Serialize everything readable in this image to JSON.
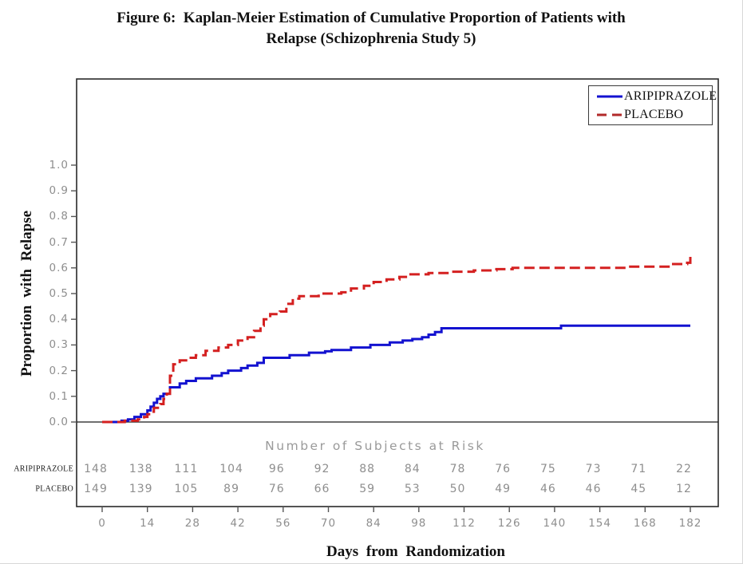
{
  "figure": {
    "title_line1": "Figure 6:  Kaplan-Meier Estimation of Cumulative Proportion of Patients with",
    "title_line2": "Relapse (Schizophrenia Study 5)"
  },
  "colors": {
    "aripiprazole_blue": "#1312d0",
    "placebo_red": "#d42020",
    "axis_text_gray": "#8e8e8e",
    "frame_black": "#2a2a2a"
  },
  "chart_data": {
    "type": "line",
    "subtype": "kaplan-meier-step",
    "title": "Figure 6: Kaplan-Meier Estimation of Cumulative Proportion of Patients with Relapse (Schizophrenia Study 5)",
    "xlabel": "Days from Randomization",
    "ylabel": "Proportion with Relapse",
    "xlim": [
      0,
      182
    ],
    "ylim": [
      0.0,
      1.0
    ],
    "grid": false,
    "baseline_y": 0.0,
    "xticks": [
      0,
      14,
      28,
      42,
      56,
      70,
      84,
      98,
      112,
      126,
      140,
      154,
      168,
      182
    ],
    "yticks": [
      0.0,
      0.1,
      0.2,
      0.3,
      0.4,
      0.5,
      0.6,
      0.7,
      0.8,
      0.9,
      1.0
    ],
    "legend": {
      "position": "top-right",
      "entries": [
        {
          "label": "ARIPIPRAZOLE",
          "color": "#1312d0",
          "style": "solid"
        },
        {
          "label": "PLACEBO",
          "color": "#d42020",
          "style": "dashed"
        }
      ]
    },
    "series": [
      {
        "name": "ARIPIPRAZOLE",
        "color": "#1312d0",
        "line_style": "solid",
        "points": [
          [
            0,
            0
          ],
          [
            6,
            0.005
          ],
          [
            8,
            0.01
          ],
          [
            10,
            0.02
          ],
          [
            12,
            0.03
          ],
          [
            14,
            0.045
          ],
          [
            15,
            0.06
          ],
          [
            16,
            0.075
          ],
          [
            17,
            0.09
          ],
          [
            18,
            0.1
          ],
          [
            19,
            0.11
          ],
          [
            21,
            0.135
          ],
          [
            24,
            0.15
          ],
          [
            26,
            0.16
          ],
          [
            29,
            0.17
          ],
          [
            34,
            0.18
          ],
          [
            37,
            0.19
          ],
          [
            39,
            0.2
          ],
          [
            43,
            0.21
          ],
          [
            45,
            0.22
          ],
          [
            48,
            0.23
          ],
          [
            50,
            0.25
          ],
          [
            58,
            0.26
          ],
          [
            64,
            0.27
          ],
          [
            69,
            0.275
          ],
          [
            71,
            0.28
          ],
          [
            77,
            0.29
          ],
          [
            83,
            0.3
          ],
          [
            89,
            0.31
          ],
          [
            93,
            0.317
          ],
          [
            96,
            0.323
          ],
          [
            99,
            0.33
          ],
          [
            101,
            0.34
          ],
          [
            103,
            0.35
          ],
          [
            105,
            0.365
          ],
          [
            142,
            0.375
          ],
          [
            182,
            0.375
          ]
        ]
      },
      {
        "name": "PLACEBO",
        "color": "#d42020",
        "line_style": "dashed",
        "points": [
          [
            0,
            0
          ],
          [
            7,
            0.005
          ],
          [
            11,
            0.01
          ],
          [
            13,
            0.02
          ],
          [
            14,
            0.03
          ],
          [
            15,
            0.04
          ],
          [
            16,
            0.055
          ],
          [
            18,
            0.07
          ],
          [
            19,
            0.09
          ],
          [
            20,
            0.11
          ],
          [
            21,
            0.18
          ],
          [
            22,
            0.225
          ],
          [
            24,
            0.24
          ],
          [
            27,
            0.25
          ],
          [
            29,
            0.26
          ],
          [
            32,
            0.277
          ],
          [
            36,
            0.29
          ],
          [
            39,
            0.3
          ],
          [
            42,
            0.317
          ],
          [
            45,
            0.33
          ],
          [
            47,
            0.355
          ],
          [
            49,
            0.375
          ],
          [
            50,
            0.4
          ],
          [
            52,
            0.42
          ],
          [
            55,
            0.43
          ],
          [
            57,
            0.46
          ],
          [
            59,
            0.48
          ],
          [
            61,
            0.49
          ],
          [
            67,
            0.5
          ],
          [
            74,
            0.505
          ],
          [
            77,
            0.52
          ],
          [
            81,
            0.53
          ],
          [
            84,
            0.545
          ],
          [
            88,
            0.555
          ],
          [
            92,
            0.565
          ],
          [
            95,
            0.575
          ],
          [
            101,
            0.58
          ],
          [
            108,
            0.585
          ],
          [
            115,
            0.59
          ],
          [
            122,
            0.595
          ],
          [
            127,
            0.6
          ],
          [
            162,
            0.605
          ],
          [
            176,
            0.615
          ],
          [
            181,
            0.62
          ],
          [
            182,
            0.65
          ]
        ]
      }
    ],
    "at_risk_table": {
      "header": "Number of Subjects at Risk",
      "days": [
        0,
        14,
        28,
        42,
        56,
        70,
        84,
        98,
        112,
        126,
        140,
        154,
        168,
        182
      ],
      "rows": [
        {
          "label": "ARIPIPRAZOLE",
          "counts": [
            148,
            138,
            111,
            104,
            96,
            92,
            88,
            84,
            78,
            76,
            75,
            73,
            71,
            22
          ]
        },
        {
          "label": "PLACEBO",
          "counts": [
            149,
            139,
            105,
            89,
            76,
            66,
            59,
            53,
            50,
            49,
            46,
            46,
            45,
            12
          ]
        }
      ]
    }
  }
}
